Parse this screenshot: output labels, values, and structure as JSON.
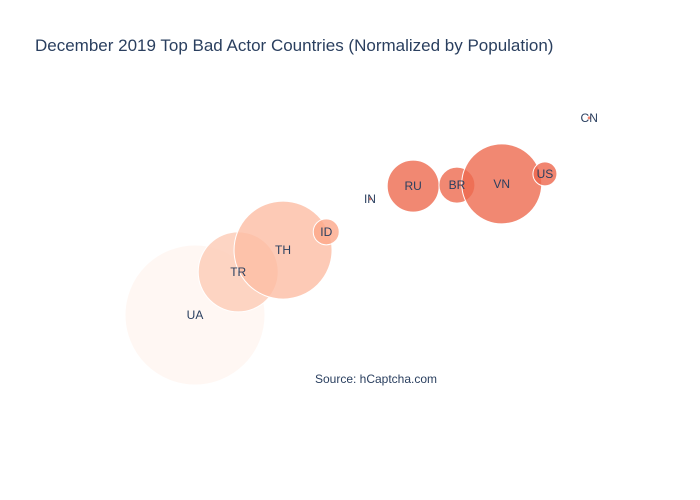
{
  "chart_data": {
    "type": "scatter",
    "title": "December 2019 Top Bad Actor Countries (Normalized by Population)",
    "annotation": "Source: hCaptcha.com",
    "xlabel": "",
    "ylabel": "",
    "xlim": [
      0,
      10
    ],
    "ylim": [
      0,
      10
    ],
    "grid": false,
    "points": [
      {
        "label": "UA",
        "x": 2.13,
        "y": 3.28,
        "size": 70,
        "color_value": 0.0
      },
      {
        "label": "TR",
        "x": 2.93,
        "y": 4.63,
        "size": 40,
        "color_value": 0.25
      },
      {
        "label": "TH",
        "x": 3.76,
        "y": 5.31,
        "size": 49,
        "color_value": 0.32
      },
      {
        "label": "ID",
        "x": 4.56,
        "y": 5.88,
        "size": 13,
        "color_value": 0.5
      },
      {
        "label": "IN",
        "x": 5.37,
        "y": 6.91,
        "size": 2,
        "color_value": 0.85
      },
      {
        "label": "RU",
        "x": 6.17,
        "y": 7.31,
        "size": 26,
        "color_value": 0.85
      },
      {
        "label": "BR",
        "x": 6.98,
        "y": 7.34,
        "size": 18,
        "color_value": 0.85
      },
      {
        "label": "VN",
        "x": 7.81,
        "y": 7.38,
        "size": 40,
        "color_value": 0.85
      },
      {
        "label": "US",
        "x": 8.61,
        "y": 7.69,
        "size": 12,
        "color_value": 0.87
      },
      {
        "label": "CN",
        "x": 9.43,
        "y": 9.44,
        "size": 2,
        "color_value": 0.87
      }
    ],
    "colorscale": [
      "#fff5f0",
      "#fcbba1",
      "#fc9272",
      "#e34a33"
    ]
  }
}
